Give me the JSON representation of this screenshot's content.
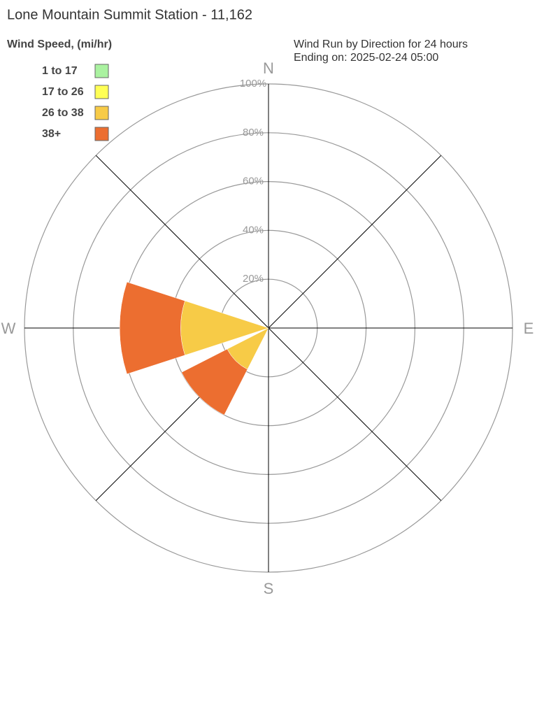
{
  "chart_data": {
    "type": "windrose",
    "title": "Lone Mountain Summit Station - 11,162",
    "legend_title": "Wind Speed, (mi/hr)",
    "subtitle": [
      "Wind Run by Direction for 24 hours",
      "Ending on: 2025-02-24 05:00"
    ],
    "categories": [
      "N",
      null,
      "E",
      null,
      "S",
      null,
      "W",
      null
    ],
    "series": [
      {
        "name": "1 to 17",
        "color": "#aaf2a0",
        "values": [
          0,
          0,
          0,
          0,
          0,
          0,
          0,
          0
        ]
      },
      {
        "name": "17 to 26",
        "color": "#ffff55",
        "values": [
          0,
          0,
          0,
          0,
          0,
          0,
          0,
          0
        ]
      },
      {
        "name": "26 to 38",
        "color": "#f7cb47",
        "values": [
          0,
          0,
          0,
          0,
          0,
          19,
          36,
          0
        ]
      },
      {
        "name": "38+",
        "color": "#ec6e30",
        "values": [
          0,
          0,
          0,
          0,
          0,
          21,
          25,
          0
        ]
      }
    ],
    "rlim": [
      0,
      100
    ],
    "rticks": [
      {
        "value": 20,
        "label": "20%"
      },
      {
        "value": 40,
        "label": "40%"
      },
      {
        "value": 60,
        "label": "60%"
      },
      {
        "value": 80,
        "label": "80%"
      },
      {
        "value": 100,
        "label": "100%"
      }
    ]
  }
}
